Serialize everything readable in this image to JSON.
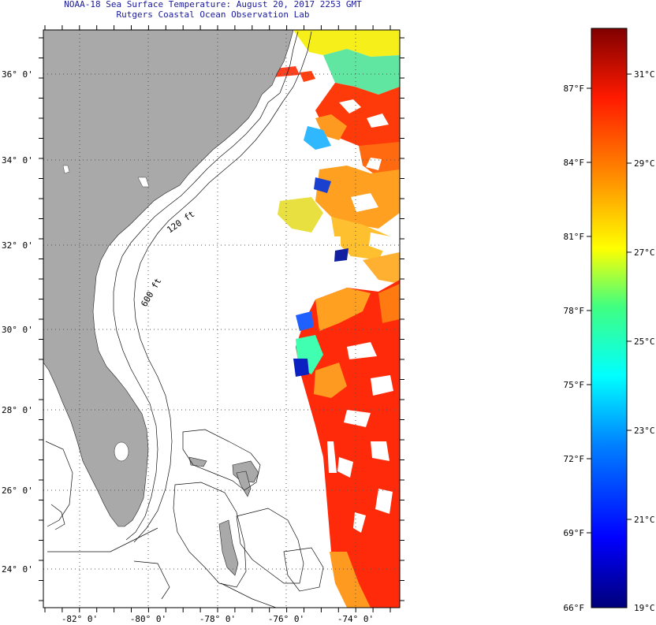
{
  "header": {
    "title": "NOAA-18 Sea Surface Temperature:  August 20, 2017 2253 GMT",
    "subtitle": "Rutgers Coastal Ocean Observation Lab"
  },
  "map": {
    "lat_labels": [
      "36° 0'",
      "34° 0'",
      "32° 0'",
      "30° 0'",
      "28° 0'",
      "26° 0'",
      "24° 0'"
    ],
    "lon_labels": [
      "-82° 0'",
      "-80° 0'",
      "-78° 0'",
      "-76° 0'",
      "-74° 0'"
    ],
    "contour_labels": [
      "120 ft",
      "600 ft"
    ],
    "colors": {
      "land": "#a9a9a9",
      "ocean": "#ffffff",
      "grid": "#444444"
    }
  },
  "colorbar": {
    "fahrenheit": [
      "87°F",
      "84°F",
      "81°F",
      "78°F",
      "75°F",
      "72°F",
      "69°F",
      "66°F"
    ],
    "celsius": [
      "31°C",
      "29°C",
      "27°C",
      "25°C",
      "23°C",
      "21°C",
      "19°C"
    ],
    "stops": [
      "#00007a",
      "#0000ff",
      "#0080ff",
      "#00ffff",
      "#40ff80",
      "#ffff00",
      "#ff8000",
      "#ff0000",
      "#800000"
    ]
  }
}
